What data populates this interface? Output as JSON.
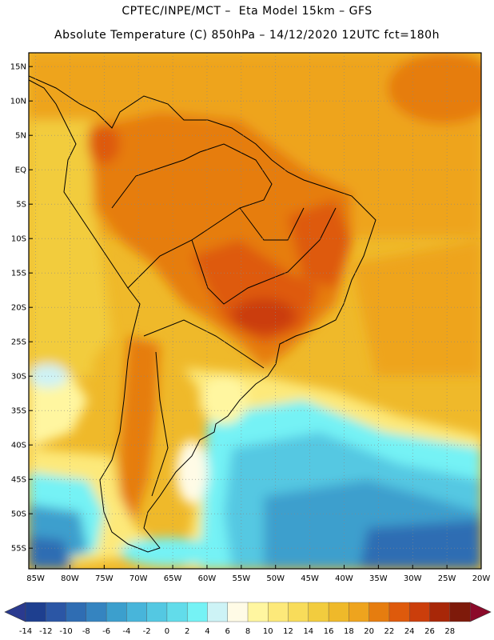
{
  "title_line1": "CPTEC/INPE/MCT –  Eta Model 15km – GFS",
  "title_line2": "Absolute Temperature (C) 850hPa – 14/12/2020 12UTC fct=180h",
  "lat_labels": [
    "15N",
    "10N",
    "5N",
    "EQ",
    "5S",
    "10S",
    "15S",
    "20S",
    "25S",
    "30S",
    "35S",
    "40S",
    "45S",
    "50S",
    "55S"
  ],
  "lat_values": [
    15,
    10,
    5,
    0,
    -5,
    -10,
    -15,
    -20,
    -25,
    -30,
    -35,
    -40,
    -45,
    -50,
    -55
  ],
  "lon_labels": [
    "85W",
    "80W",
    "75W",
    "70W",
    "65W",
    "60W",
    "55W",
    "50W",
    "45W",
    "40W",
    "35W",
    "30W",
    "25W",
    "20W"
  ],
  "lon_values": [
    -85,
    -80,
    -75,
    -70,
    -65,
    -60,
    -55,
    -50,
    -45,
    -40,
    -35,
    -30,
    -25,
    -20
  ],
  "map_extent": {
    "lon_min": -86,
    "lon_max": -20,
    "lat_min": -58,
    "lat_max": 17
  },
  "colorbar": {
    "tick_labels": [
      "-14",
      "-12",
      "-10",
      "-8",
      "-6",
      "-4",
      "-2",
      "0",
      "2",
      "4",
      "6",
      "8",
      "10",
      "12",
      "14",
      "16",
      "18",
      "20",
      "22",
      "24",
      "26",
      "28"
    ],
    "colors": [
      "#1e3f8f",
      "#2b56a5",
      "#2f6db3",
      "#3584c0",
      "#3c9fcd",
      "#48b5da",
      "#54c8e2",
      "#62dcea",
      "#75f2f5",
      "#cdf3f6",
      "#fffbe6",
      "#fff6a0",
      "#fde97a",
      "#f8dc5a",
      "#f2cc3e",
      "#efb92a",
      "#eea41e",
      "#e67d0f",
      "#de5a0c",
      "#cb3e0b",
      "#a82708",
      "#7e1a0a"
    ]
  },
  "legend_colors": {
    "low_arrow": "#2a3a8f",
    "high_arrow": "#8b0a2a"
  }
}
